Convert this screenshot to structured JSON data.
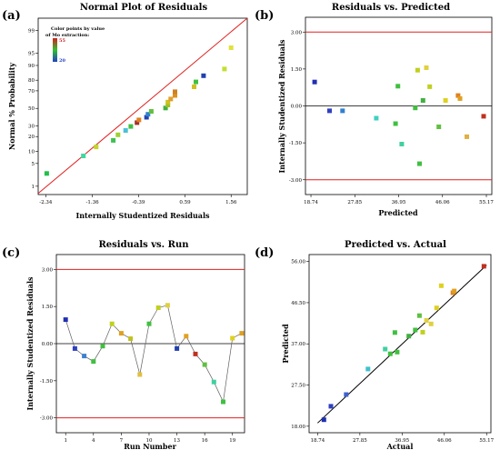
{
  "figure": {
    "panels": [
      {
        "letter": "(a)"
      },
      {
        "letter": "(b)"
      },
      {
        "letter": "(c)"
      },
      {
        "letter": "(d)"
      }
    ]
  },
  "chart_data": [
    {
      "type": "scatter",
      "title": "Normal Plot of Residuals",
      "xlabel": "Internally Studentized Residuals",
      "ylabel": "Normal % Probability",
      "xlim": [
        -2.34,
        1.56
      ],
      "x_ticks": [
        "-2.34",
        "-1.36",
        "-0.39",
        "0.59",
        "1.56"
      ],
      "y_ticks": [
        {
          "label": "1",
          "value": 1
        },
        {
          "label": "5",
          "value": 5
        },
        {
          "label": "10",
          "value": 10
        },
        {
          "label": "20",
          "value": 20
        },
        {
          "label": "30",
          "value": 30
        },
        {
          "label": "50",
          "value": 50
        },
        {
          "label": "70",
          "value": 70
        },
        {
          "label": "80",
          "value": 80
        },
        {
          "label": "90",
          "value": 90
        },
        {
          "label": "95",
          "value": 95
        },
        {
          "label": "99",
          "value": 99
        }
      ],
      "legend": {
        "title": [
          "Color points by value",
          "of Mo extraction:"
        ],
        "max_label": "55",
        "min_label": "20",
        "placement": "top-left"
      },
      "reference_line": [
        [
          -2.5,
          0.55
        ],
        [
          1.9,
          99.65
        ]
      ],
      "points": [
        {
          "x": -2.32,
          "y": 2.6,
          "c": "#22c04a"
        },
        {
          "x": -1.55,
          "y": 7.8,
          "c": "#40d8a0"
        },
        {
          "x": -1.28,
          "y": 12.5,
          "c": "#c0d82a"
        },
        {
          "x": -0.92,
          "y": 17.0,
          "c": "#40c050"
        },
        {
          "x": -0.82,
          "y": 21.5,
          "c": "#a0d030"
        },
        {
          "x": -0.66,
          "y": 25.5,
          "c": "#4cc0d8"
        },
        {
          "x": -0.55,
          "y": 29.5,
          "c": "#40c040"
        },
        {
          "x": -0.42,
          "y": 33.5,
          "c": "#a03028"
        },
        {
          "x": -0.38,
          "y": 36.5,
          "c": "#e08020"
        },
        {
          "x": -0.22,
          "y": 39.5,
          "c": "#2040b0"
        },
        {
          "x": -0.19,
          "y": 43.0,
          "c": "#3080d0"
        },
        {
          "x": -0.12,
          "y": 46.5,
          "c": "#60c040"
        },
        {
          "x": 0.18,
          "y": 50.5,
          "c": "#40b040"
        },
        {
          "x": 0.23,
          "y": 54.0,
          "c": "#a0c020"
        },
        {
          "x": 0.23,
          "y": 57.5,
          "c": "#d0c020"
        },
        {
          "x": 0.29,
          "y": 61.0,
          "c": "#e0a030"
        },
        {
          "x": 0.38,
          "y": 65.0,
          "c": "#e09020"
        },
        {
          "x": 0.38,
          "y": 69.0,
          "c": "#d08020"
        },
        {
          "x": 0.78,
          "y": 74.0,
          "c": "#d0c020"
        },
        {
          "x": 0.82,
          "y": 78.5,
          "c": "#40c040"
        },
        {
          "x": 0.98,
          "y": 83.5,
          "c": "#2040b0"
        },
        {
          "x": 1.42,
          "y": 88.0,
          "c": "#c0e030"
        },
        {
          "x": 1.56,
          "y": 96.5,
          "c": "#e0e040"
        }
      ]
    },
    {
      "type": "scatter",
      "title": "Residuals vs. Predicted",
      "xlabel": "Predicted",
      "ylabel": "Internally Studentized Residuals",
      "xlim": [
        18.74,
        55.17
      ],
      "ylim": [
        -3.6,
        3.6
      ],
      "x_ticks": [
        "18.74",
        "27.85",
        "36.95",
        "46.06",
        "55.17"
      ],
      "y_ticks": [
        "3.00",
        "1.50",
        "0.00",
        "-1.50",
        "-3.00"
      ],
      "limit_lines": [
        3.0,
        -3.0
      ],
      "points": [
        {
          "x": 19.5,
          "y": 0.97,
          "c": "#2030b0"
        },
        {
          "x": 22.6,
          "y": -0.2,
          "c": "#3040c0"
        },
        {
          "x": 25.3,
          "y": -0.2,
          "c": "#3080d0"
        },
        {
          "x": 32.3,
          "y": -0.5,
          "c": "#40d0c0"
        },
        {
          "x": 36.3,
          "y": -0.72,
          "c": "#40c040"
        },
        {
          "x": 36.8,
          "y": 0.8,
          "c": "#40c040"
        },
        {
          "x": 37.6,
          "y": -1.55,
          "c": "#40d0a0"
        },
        {
          "x": 40.4,
          "y": -0.08,
          "c": "#40c040"
        },
        {
          "x": 40.9,
          "y": 1.45,
          "c": "#c0d020"
        },
        {
          "x": 41.3,
          "y": -2.35,
          "c": "#40c040"
        },
        {
          "x": 42.0,
          "y": 0.22,
          "c": "#40b040"
        },
        {
          "x": 42.7,
          "y": 1.55,
          "c": "#e0d040"
        },
        {
          "x": 43.4,
          "y": 0.78,
          "c": "#c0d020"
        },
        {
          "x": 45.3,
          "y": -0.85,
          "c": "#60c040"
        },
        {
          "x": 46.7,
          "y": 0.22,
          "c": "#e0d020"
        },
        {
          "x": 49.3,
          "y": 0.42,
          "c": "#e08020"
        },
        {
          "x": 49.7,
          "y": 0.3,
          "c": "#e0a020"
        },
        {
          "x": 51.1,
          "y": -1.25,
          "c": "#e0b040"
        },
        {
          "x": 54.6,
          "y": -0.42,
          "c": "#c03020"
        }
      ]
    },
    {
      "type": "line",
      "title": "Residuals vs. Run",
      "xlabel": "Run Number",
      "ylabel": "Internally Studentized Residuals",
      "xlim": [
        0,
        20.3
      ],
      "ylim": [
        -3.6,
        3.6
      ],
      "x_ticks": [
        1,
        4,
        7,
        10,
        13,
        16,
        19
      ],
      "y_ticks": [
        "3.00",
        "1.50",
        "0.00",
        "-1.50",
        "-3.00"
      ],
      "limit_lines": [
        3.0,
        -3.0
      ],
      "points": [
        {
          "x": 1,
          "y": 0.97,
          "c": "#2030b0"
        },
        {
          "x": 2,
          "y": -0.2,
          "c": "#3040c0"
        },
        {
          "x": 3,
          "y": -0.5,
          "c": "#4080d0"
        },
        {
          "x": 4,
          "y": -0.72,
          "c": "#40c040"
        },
        {
          "x": 5,
          "y": -0.1,
          "c": "#40c040"
        },
        {
          "x": 6,
          "y": 0.8,
          "c": "#c0d020"
        },
        {
          "x": 7,
          "y": 0.42,
          "c": "#e0a020"
        },
        {
          "x": 8,
          "y": 0.2,
          "c": "#c0c020"
        },
        {
          "x": 9,
          "y": -1.25,
          "c": "#e0c040"
        },
        {
          "x": 10,
          "y": 0.8,
          "c": "#40c040"
        },
        {
          "x": 11,
          "y": 1.45,
          "c": "#c0d020"
        },
        {
          "x": 12,
          "y": 1.55,
          "c": "#e0d040"
        },
        {
          "x": 13,
          "y": -0.2,
          "c": "#2040b0"
        },
        {
          "x": 14,
          "y": 0.3,
          "c": "#e0a020"
        },
        {
          "x": 15,
          "y": -0.42,
          "c": "#c03020"
        },
        {
          "x": 16,
          "y": -0.85,
          "c": "#60c040"
        },
        {
          "x": 17,
          "y": -1.55,
          "c": "#40d0a0"
        },
        {
          "x": 18,
          "y": -2.35,
          "c": "#40c040"
        },
        {
          "x": 19,
          "y": 0.22,
          "c": "#e0d020"
        },
        {
          "x": 20,
          "y": 0.42,
          "c": "#e0a020"
        }
      ]
    },
    {
      "type": "scatter",
      "title": "Predicted vs. Actual",
      "xlabel": "Actual",
      "ylabel": "Predicted",
      "xlim": [
        18.74,
        55.17
      ],
      "ylim": [
        18.0,
        56.0
      ],
      "x_ticks": [
        "18.74",
        "27.85",
        "36.95",
        "46.06",
        "55.17"
      ],
      "y_ticks": [
        "18.00",
        "27.50",
        "37.00",
        "46.50",
        "56.00"
      ],
      "fit_line": [
        [
          18.74,
          18.74
        ],
        [
          55.17,
          55.17
        ]
      ],
      "points": [
        {
          "x": 20.1,
          "y": 19.5,
          "c": "#2030b0"
        },
        {
          "x": 21.6,
          "y": 22.6,
          "c": "#3040c0"
        },
        {
          "x": 24.9,
          "y": 25.3,
          "c": "#4060d0"
        },
        {
          "x": 29.6,
          "y": 31.2,
          "c": "#40c0d0"
        },
        {
          "x": 33.3,
          "y": 35.8,
          "c": "#40d0a0"
        },
        {
          "x": 34.4,
          "y": 34.7,
          "c": "#40c040"
        },
        {
          "x": 35.4,
          "y": 39.6,
          "c": "#40c040"
        },
        {
          "x": 35.9,
          "y": 35.1,
          "c": "#40c040"
        },
        {
          "x": 38.4,
          "y": 38.8,
          "c": "#40b040"
        },
        {
          "x": 39.8,
          "y": 40.2,
          "c": "#40c040"
        },
        {
          "x": 40.7,
          "y": 43.5,
          "c": "#60c040"
        },
        {
          "x": 41.4,
          "y": 39.7,
          "c": "#c0d020"
        },
        {
          "x": 42.2,
          "y": 42.4,
          "c": "#e0d040"
        },
        {
          "x": 43.2,
          "y": 41.6,
          "c": "#e0d040"
        },
        {
          "x": 44.4,
          "y": 45.3,
          "c": "#e0d020"
        },
        {
          "x": 45.4,
          "y": 50.4,
          "c": "#e0d020"
        },
        {
          "x": 47.9,
          "y": 48.8,
          "c": "#e08020"
        },
        {
          "x": 48.2,
          "y": 49.2,
          "c": "#e0a020"
        },
        {
          "x": 54.6,
          "y": 54.9,
          "c": "#c03020"
        }
      ]
    }
  ]
}
